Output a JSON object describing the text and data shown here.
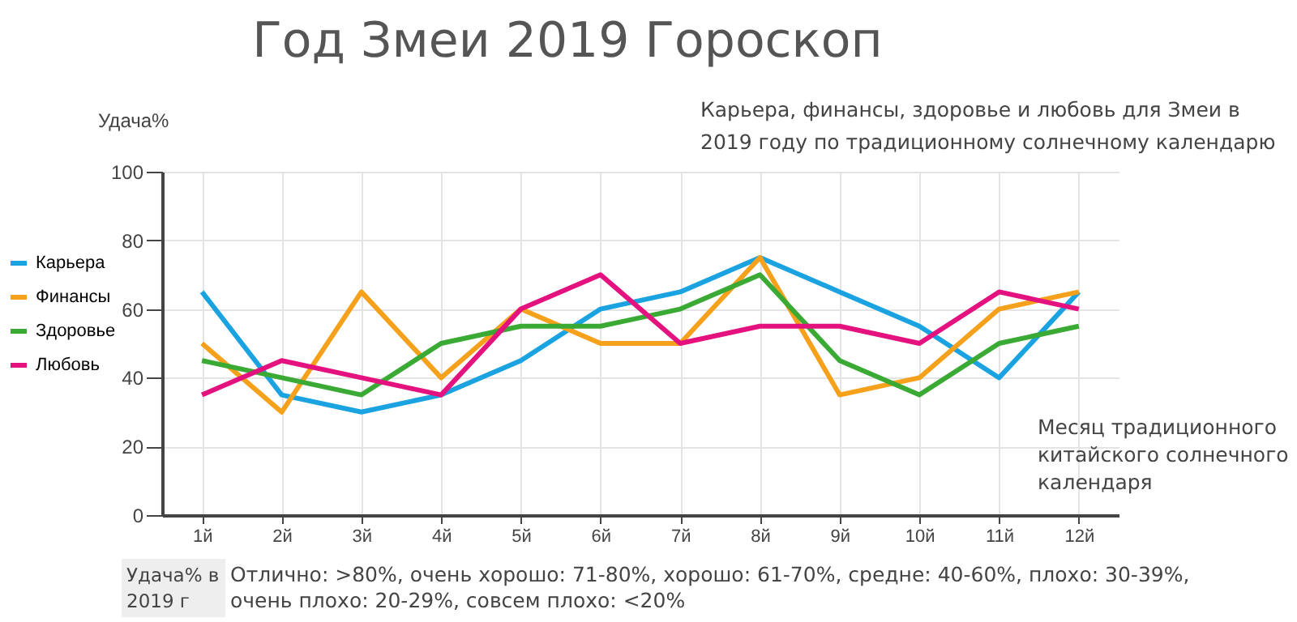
{
  "chart_data": {
    "type": "line",
    "title": "Год Змеи 2019 Гороскоп",
    "subtitle": "Карьера, финансы, здоровье и любовь для Змеи в 2019 году по традиционному солнечному календарю",
    "xlabel": "Месяц традиционного китайского солнечного календаря",
    "ylabel": "Удача%",
    "annotations": [
      "Удача% в 2019 г",
      "Отлично: >80%, очень хорошо: 71-80%, хорошо: 61-70%, средне: 40-60%, плохо: 30-39%, очень плохо: 20-29%, совсем плохо: <20%"
    ],
    "categories": [
      "1й",
      "2й",
      "3й",
      "4й",
      "5й",
      "6й",
      "7й",
      "8й",
      "9й",
      "10й",
      "11й",
      "12й"
    ],
    "series": [
      {
        "name": "Карьера",
        "color": "#1aa3e0",
        "values": [
          65,
          35,
          30,
          35,
          45,
          60,
          65,
          75,
          65,
          55,
          40,
          65
        ]
      },
      {
        "name": "Финансы",
        "color": "#f5a11c",
        "values": [
          50,
          30,
          65,
          40,
          60,
          50,
          50,
          75,
          35,
          40,
          60,
          65
        ]
      },
      {
        "name": "Здоровье",
        "color": "#3aaa35",
        "values": [
          45,
          40,
          35,
          50,
          55,
          55,
          60,
          70,
          45,
          35,
          50,
          55
        ]
      },
      {
        "name": "Любовь",
        "color": "#e4127f",
        "values": [
          35,
          45,
          40,
          35,
          60,
          70,
          50,
          55,
          55,
          50,
          65,
          60
        ]
      }
    ],
    "ylim": [
      0,
      100
    ],
    "yticks": [
      0,
      20,
      40,
      60,
      80,
      100
    ],
    "grid": true,
    "legend": "left",
    "line_style": "solid"
  }
}
